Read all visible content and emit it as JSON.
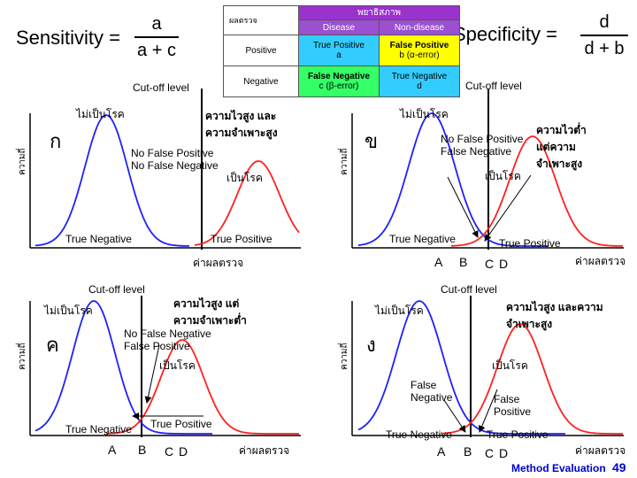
{
  "formulas": {
    "sensitivity_label": "Sensitivity =",
    "sensitivity_num": "a",
    "sensitivity_den": "a + c",
    "specificity_label": "Specificity =",
    "specificity_num": "d",
    "specificity_den": "d + b"
  },
  "table": {
    "corner": "ผลตรวจ",
    "header": "พยาธิสภาพ",
    "col_disease": "Disease",
    "col_nondisease": "Non-disease",
    "row_positive": "Positive",
    "row_negative": "Negative",
    "tp": "True Positive",
    "tp_sym": "a",
    "fp": "False Positive",
    "fp_sym": "b (α-error)",
    "fn": "False Negative",
    "fn_sym": "c (β-error)",
    "tn": "True Negative",
    "tn_sym": "d"
  },
  "panels": {
    "ko": {
      "letter": "ก",
      "cutoff": "Cut-off level",
      "healthy": "ไม่เป็นโรค",
      "disease": "เป็นโรค",
      "quality": "ความไวสูง และความจำเพาะสูง",
      "note1": "No False Positive",
      "note2": "No False Negative",
      "tn": "True Negative",
      "tp": "True Positive",
      "xlabel": "ค่าผลตรวจ",
      "ylabel": "ความถี่"
    },
    "kho": {
      "letter": "ข",
      "cutoff": "Cut-off level",
      "healthy": "ไม่เป็นโรค",
      "disease": "เป็นโรค",
      "quality": "ความไวต่ำ แต่ความจำเพาะสูง",
      "note1": "No False Positive",
      "note2": "False Negative",
      "tn": "True Negative",
      "tp": "True Positive",
      "xlabel": "ค่าผลตรวจ",
      "ylabel": "ความถี่",
      "points": [
        "A",
        "B",
        "C",
        "D"
      ]
    },
    "kho2": {
      "letter": "ค",
      "cutoff": "Cut-off level",
      "healthy": "ไม่เป็นโรค",
      "disease": "เป็นโรค",
      "quality": "ความไวสูง แต่ความจำเพาะต่ำ",
      "note1": "No False Negative",
      "note2": "False Positive",
      "tn": "True Negative",
      "tp": "True Positive",
      "xlabel": "ค่าผลตรวจ",
      "ylabel": "ความถี่",
      "points": [
        "A",
        "B",
        "C",
        "D"
      ]
    },
    "ngo": {
      "letter": "ง",
      "cutoff": "Cut-off level",
      "healthy": "ไม่เป็นโรค",
      "disease": "เป็นโรค",
      "quality": "ความไวสูง และความจำเพาะสูง",
      "note1": "False Negative",
      "note2": "False Positive",
      "tn": "True Negative",
      "tp": "True Positive",
      "xlabel": "ค่าผลตรวจ",
      "ylabel": "ความถี่",
      "points": [
        "A",
        "B",
        "C",
        "D"
      ]
    }
  },
  "footer": {
    "title": "Method Evaluation",
    "page": "49"
  },
  "colors": {
    "healthy_curve": "#1f1fff",
    "disease_curve": "#ff2020",
    "accent": "#9933cc",
    "footer_text": "#0000cc"
  }
}
